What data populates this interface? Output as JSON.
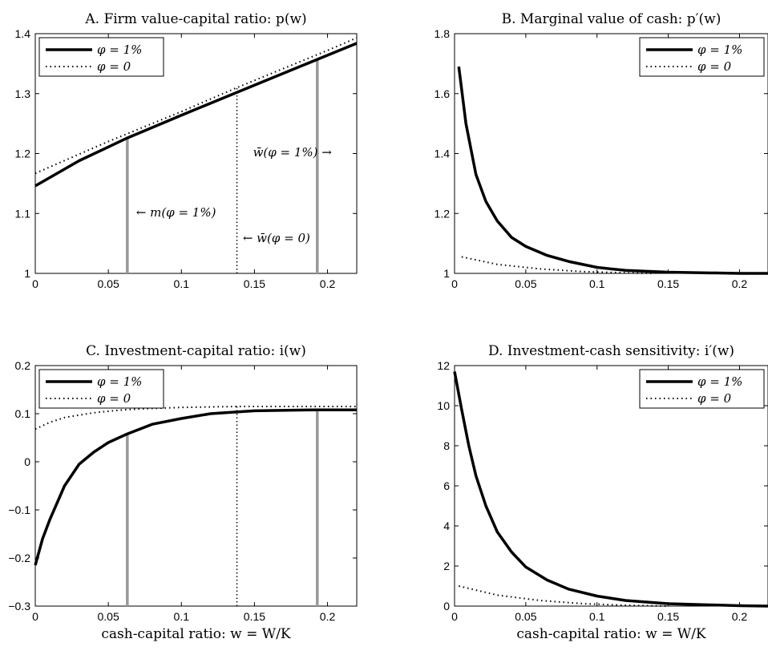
{
  "chart_data": [
    {
      "type": "line",
      "title": "A. Firm value-capital ratio: p(w)",
      "xlabel": "",
      "ylabel": "",
      "xlim": [
        0,
        0.22
      ],
      "ylim": [
        1,
        1.4
      ],
      "xticks": [
        "0",
        "0.05",
        "0.1",
        "0.15",
        "0.2"
      ],
      "yticks": [
        "1",
        "1.1",
        "1.2",
        "1.3",
        "1.4"
      ],
      "legend_position": "top-left",
      "series": [
        {
          "name": "φ = 1%",
          "style": "solid",
          "x": [
            0,
            0.03,
            0.063,
            0.1,
            0.15,
            0.193,
            0.22
          ],
          "y": [
            1.146,
            1.188,
            1.226,
            1.264,
            1.314,
            1.357,
            1.384
          ]
        },
        {
          "name": "φ = 0",
          "style": "dotted",
          "x": [
            0,
            0.05,
            0.1,
            0.138,
            0.2,
            0.22
          ],
          "y": [
            1.167,
            1.22,
            1.27,
            1.31,
            1.372,
            1.393
          ]
        }
      ],
      "vlines": [
        {
          "x": 0.063,
          "y_top": 1.226,
          "color": "#999999",
          "style": "solid"
        },
        {
          "x": 0.193,
          "y_top": 1.357,
          "color": "#999999",
          "style": "solid"
        },
        {
          "x": 0.138,
          "y_top": 1.31,
          "color": "#000000",
          "style": "dotted"
        }
      ],
      "annotations": [
        {
          "text": "w̄(φ = 1%) →",
          "x": 0.149,
          "y": 1.195
        },
        {
          "text": "←  m(φ = 1%)",
          "x": 0.069,
          "y": 1.095
        },
        {
          "text": "←  w̄(φ = 0)",
          "x": 0.142,
          "y": 1.052
        }
      ]
    },
    {
      "type": "line",
      "title": "B. Marginal value of cash: p′(w)",
      "xlabel": "",
      "ylabel": "",
      "xlim": [
        0,
        0.22
      ],
      "ylim": [
        1,
        1.8
      ],
      "xticks": [
        "0",
        "0.05",
        "0.1",
        "0.15",
        "0.2"
      ],
      "yticks": [
        "1",
        "1.2",
        "1.4",
        "1.6",
        "1.8"
      ],
      "legend_position": "top-right",
      "series": [
        {
          "name": "φ = 1%",
          "style": "solid",
          "x": [
            0.003,
            0.008,
            0.015,
            0.022,
            0.03,
            0.04,
            0.05,
            0.065,
            0.08,
            0.1,
            0.12,
            0.15,
            0.2,
            0.22
          ],
          "y": [
            1.69,
            1.5,
            1.33,
            1.24,
            1.175,
            1.12,
            1.09,
            1.06,
            1.04,
            1.02,
            1.01,
            1.004,
            1.0,
            1.0
          ]
        },
        {
          "name": "φ = 0",
          "style": "dotted",
          "x": [
            0.005,
            0.03,
            0.06,
            0.09,
            0.12,
            0.14
          ],
          "y": [
            1.055,
            1.03,
            1.015,
            1.006,
            1.002,
            1.0
          ]
        }
      ]
    },
    {
      "type": "line",
      "title": "C. Investment-capital ratio: i(w)",
      "xlabel": "cash-capital ratio: w = W/K",
      "ylabel": "",
      "xlim": [
        0,
        0.22
      ],
      "ylim": [
        -0.3,
        0.2
      ],
      "xticks": [
        "0",
        "0.05",
        "0.1",
        "0.15",
        "0.2"
      ],
      "yticks": [
        "−0.3",
        "−0.2",
        "−0.1",
        "0",
        "0.1",
        "0.2"
      ],
      "legend_position": "top-left",
      "series": [
        {
          "name": "φ = 1%",
          "style": "solid",
          "x": [
            0,
            0.005,
            0.01,
            0.02,
            0.03,
            0.04,
            0.05,
            0.063,
            0.08,
            0.1,
            0.12,
            0.15,
            0.193,
            0.22
          ],
          "y": [
            -0.215,
            -0.16,
            -0.12,
            -0.05,
            -0.005,
            0.02,
            0.04,
            0.058,
            0.078,
            0.09,
            0.1,
            0.106,
            0.108,
            0.108
          ]
        },
        {
          "name": "φ = 0",
          "style": "dotted",
          "x": [
            0,
            0.01,
            0.02,
            0.04,
            0.06,
            0.08,
            0.1,
            0.138,
            0.22
          ],
          "y": [
            0.068,
            0.082,
            0.092,
            0.102,
            0.108,
            0.111,
            0.113,
            0.115,
            0.115
          ]
        }
      ],
      "vlines": [
        {
          "x": 0.063,
          "y_top": 0.058,
          "color": "#999999",
          "style": "solid"
        },
        {
          "x": 0.193,
          "y_top": 0.108,
          "color": "#999999",
          "style": "solid"
        },
        {
          "x": 0.138,
          "y_top": 0.115,
          "color": "#000000",
          "style": "dotted"
        }
      ]
    },
    {
      "type": "line",
      "title": "D. Investment-cash sensitivity: i′(w)",
      "xlabel": "cash-capital ratio: w = W/K",
      "ylabel": "",
      "xlim": [
        0,
        0.22
      ],
      "ylim": [
        0,
        12
      ],
      "xticks": [
        "0",
        "0.05",
        "0.1",
        "0.15",
        "0.2"
      ],
      "yticks": [
        "0",
        "2",
        "4",
        "6",
        "8",
        "10",
        "12"
      ],
      "legend_position": "top-right",
      "series": [
        {
          "name": "φ = 1%",
          "style": "solid",
          "x": [
            0,
            0.005,
            0.01,
            0.015,
            0.022,
            0.03,
            0.04,
            0.05,
            0.065,
            0.08,
            0.1,
            0.12,
            0.15,
            0.2,
            0.22
          ],
          "y": [
            11.7,
            9.8,
            8.0,
            6.5,
            5.0,
            3.7,
            2.7,
            1.95,
            1.3,
            0.85,
            0.5,
            0.28,
            0.12,
            0.02,
            0.0
          ]
        },
        {
          "name": "φ = 0",
          "style": "dotted",
          "x": [
            0.003,
            0.03,
            0.06,
            0.09,
            0.12,
            0.15
          ],
          "y": [
            1.0,
            0.55,
            0.28,
            0.12,
            0.04,
            0.0
          ]
        }
      ]
    }
  ]
}
